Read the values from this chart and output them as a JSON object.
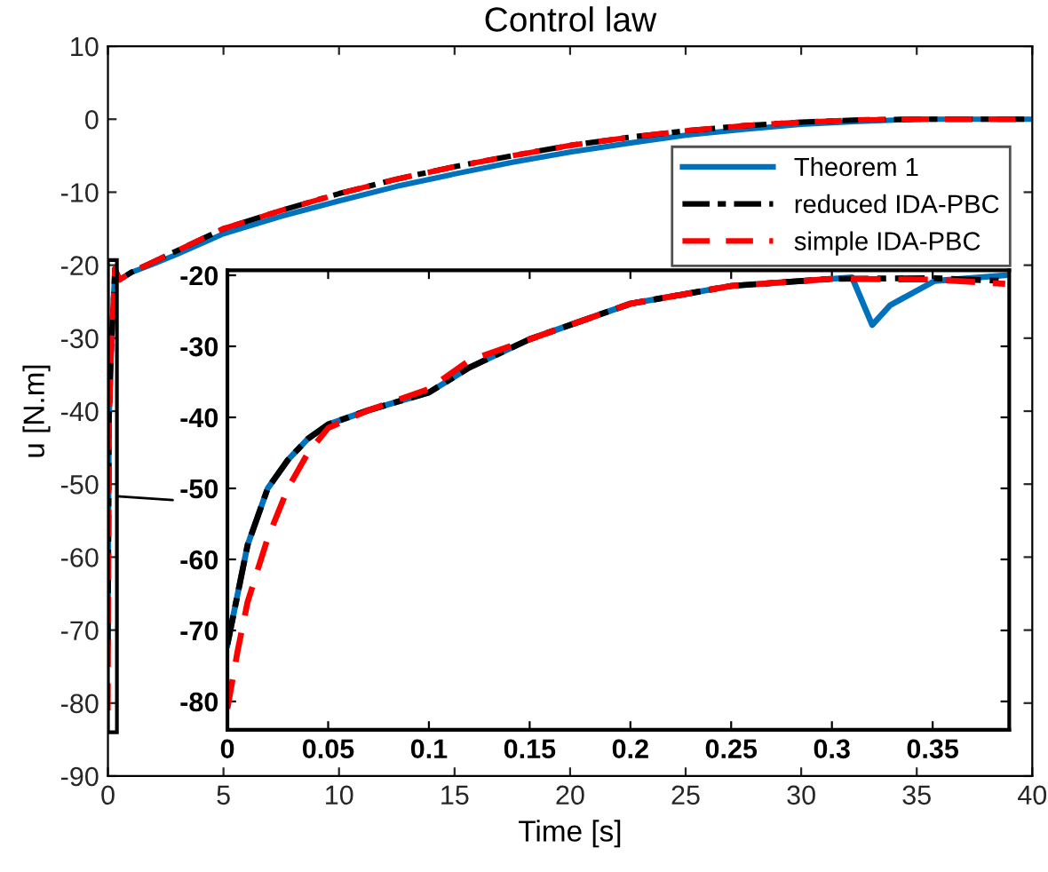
{
  "chart_data": [
    {
      "type": "line",
      "title": "Control law",
      "xlabel": "Time [s]",
      "ylabel": "u [N.m]",
      "xlim": [
        0,
        40
      ],
      "ylim": [
        -90,
        10
      ],
      "xticks": [
        0,
        5,
        10,
        15,
        20,
        25,
        30,
        35,
        40
      ],
      "yticks": [
        -90,
        -80,
        -70,
        -60,
        -50,
        -40,
        -30,
        -20,
        -10,
        0,
        10
      ],
      "grid": false,
      "legend": "top right",
      "marker": "none",
      "series": [
        {
          "name": "Theorem 1",
          "color": "#0072bd",
          "line_style": "solid",
          "x": [
            0,
            0.05,
            0.15,
            0.3,
            0.5,
            1,
            2,
            3,
            5,
            7.5,
            10,
            12.5,
            15,
            17.5,
            20,
            22.5,
            25,
            27.5,
            30,
            32.5,
            35,
            40
          ],
          "values": [
            -72,
            -41,
            -31,
            -20.5,
            -22,
            -21,
            -19.8,
            -18.5,
            -15.7,
            -13.3,
            -11.2,
            -9.2,
            -7.5,
            -5.9,
            -4.5,
            -3.3,
            -2.2,
            -1.4,
            -0.7,
            -0.3,
            0,
            0
          ]
        },
        {
          "name": "reduced IDA-PBC",
          "color": "#000000",
          "line_style": "dashdot",
          "x": [
            0,
            0.05,
            0.15,
            0.3,
            0.5,
            1,
            2,
            3,
            5,
            7.5,
            10,
            12.5,
            15,
            17.5,
            20,
            22.5,
            25,
            27.5,
            30,
            32.5,
            35,
            40
          ],
          "values": [
            -72,
            -41,
            -31,
            -20.5,
            -22,
            -21,
            -19.5,
            -18,
            -15,
            -12.5,
            -10.2,
            -8.2,
            -6.5,
            -5,
            -3.6,
            -2.5,
            -1.6,
            -0.9,
            -0.4,
            -0.1,
            0,
            0
          ]
        },
        {
          "name": "simple IDA-PBC",
          "color": "#ff0000",
          "line_style": "dashed",
          "x": [
            0,
            0.05,
            0.15,
            0.3,
            0.5,
            1,
            2,
            3,
            5,
            7.5,
            10,
            12.5,
            15,
            17.5,
            20,
            22.5,
            25,
            27.5,
            30,
            32.5,
            35,
            40
          ],
          "values": [
            -81,
            -41.5,
            -31,
            -20.5,
            -22,
            -21,
            -19.5,
            -18,
            -15,
            -12.5,
            -10.2,
            -8.2,
            -6.5,
            -5,
            -3.6,
            -2.5,
            -1.6,
            -0.9,
            -0.4,
            -0.1,
            0,
            0
          ]
        }
      ]
    },
    {
      "type": "line",
      "xlim": [
        0,
        0.388
      ],
      "ylim": [
        -84,
        -19.3
      ],
      "xticks": [
        0,
        0.05,
        0.1,
        0.15,
        0.2,
        0.25,
        0.3,
        0.35
      ],
      "yticks": [
        -80,
        -70,
        -60,
        -50,
        -40,
        -30,
        -20
      ],
      "grid": false,
      "marker": "none",
      "series": [
        {
          "color": "#0072bd",
          "line_style": "solid",
          "x": [
            0,
            0.005,
            0.01,
            0.02,
            0.03,
            0.04,
            0.05,
            0.07,
            0.1,
            0.12,
            0.15,
            0.2,
            0.25,
            0.3,
            0.31,
            0.32,
            0.329,
            0.351,
            0.386
          ],
          "values": [
            -72,
            -65,
            -58,
            -50,
            -46,
            -43,
            -41,
            -39,
            -36.5,
            -33,
            -29,
            -24,
            -21.5,
            -20.5,
            -20.3,
            -27,
            -24.2,
            -20.8,
            -20
          ]
        },
        {
          "color": "#000000",
          "line_style": "dashdot",
          "x": [
            0,
            0.005,
            0.01,
            0.02,
            0.03,
            0.04,
            0.05,
            0.07,
            0.1,
            0.12,
            0.15,
            0.2,
            0.25,
            0.3,
            0.35,
            0.386
          ],
          "values": [
            -72,
            -65,
            -58,
            -50,
            -46,
            -43,
            -41,
            -39,
            -36.5,
            -33,
            -29,
            -24,
            -21.5,
            -20.5,
            -20.4,
            -20.8
          ]
        },
        {
          "color": "#ff0000",
          "line_style": "dashed",
          "x": [
            0,
            0.005,
            0.01,
            0.02,
            0.03,
            0.04,
            0.05,
            0.07,
            0.1,
            0.12,
            0.15,
            0.2,
            0.25,
            0.3,
            0.35,
            0.386
          ],
          "values": [
            -81,
            -73,
            -66,
            -57,
            -50,
            -45,
            -41.5,
            -39,
            -36,
            -32,
            -29,
            -24,
            -21.5,
            -20.5,
            -20.6,
            -21.2
          ]
        }
      ]
    }
  ]
}
